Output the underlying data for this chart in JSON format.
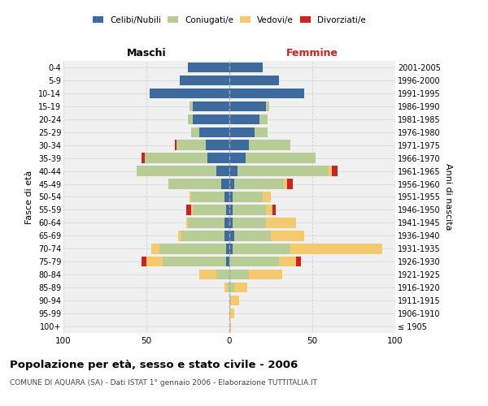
{
  "age_groups": [
    "100+",
    "95-99",
    "90-94",
    "85-89",
    "80-84",
    "75-79",
    "70-74",
    "65-69",
    "60-64",
    "55-59",
    "50-54",
    "45-49",
    "40-44",
    "35-39",
    "30-34",
    "25-29",
    "20-24",
    "15-19",
    "10-14",
    "5-9",
    "0-4"
  ],
  "birth_years": [
    "≤ 1905",
    "1906-1910",
    "1911-1915",
    "1916-1920",
    "1921-1925",
    "1926-1930",
    "1931-1935",
    "1936-1940",
    "1941-1945",
    "1946-1950",
    "1951-1955",
    "1956-1960",
    "1961-1965",
    "1966-1970",
    "1971-1975",
    "1976-1980",
    "1981-1985",
    "1986-1990",
    "1991-1995",
    "1996-2000",
    "2001-2005"
  ],
  "colors": {
    "celibi": "#3d6b9e",
    "coniugati": "#b8cc96",
    "vedovi": "#f5c96e",
    "divorziati": "#cc2222"
  },
  "maschi": {
    "celibi": [
      0,
      0,
      0,
      0,
      0,
      2,
      2,
      3,
      3,
      2,
      3,
      5,
      8,
      13,
      14,
      18,
      22,
      22,
      48,
      30,
      25
    ],
    "coniugati": [
      0,
      0,
      0,
      1,
      8,
      38,
      40,
      26,
      22,
      20,
      20,
      32,
      48,
      38,
      18,
      5,
      3,
      2,
      0,
      0,
      0
    ],
    "vedovi": [
      0,
      0,
      0,
      2,
      10,
      10,
      5,
      2,
      1,
      1,
      1,
      0,
      0,
      0,
      0,
      0,
      0,
      0,
      0,
      0,
      0
    ],
    "divorziati": [
      0,
      0,
      0,
      0,
      0,
      3,
      0,
      0,
      0,
      3,
      0,
      0,
      0,
      2,
      1,
      0,
      0,
      0,
      0,
      0,
      0
    ]
  },
  "femmine": {
    "celibi": [
      0,
      0,
      0,
      0,
      0,
      0,
      2,
      3,
      2,
      2,
      2,
      3,
      5,
      10,
      12,
      15,
      18,
      22,
      45,
      30,
      20
    ],
    "coniugati": [
      0,
      0,
      1,
      3,
      12,
      30,
      35,
      22,
      20,
      20,
      18,
      30,
      55,
      42,
      25,
      8,
      5,
      2,
      0,
      0,
      0
    ],
    "vedovi": [
      1,
      3,
      5,
      8,
      20,
      10,
      55,
      20,
      18,
      4,
      5,
      2,
      2,
      0,
      0,
      0,
      0,
      0,
      0,
      0,
      0
    ],
    "divorziati": [
      0,
      0,
      0,
      0,
      0,
      3,
      0,
      0,
      0,
      2,
      0,
      3,
      3,
      0,
      0,
      0,
      0,
      0,
      0,
      0,
      0
    ]
  },
  "title": "Popolazione per età, sesso e stato civile - 2006",
  "subtitle": "COMUNE DI AQUARA (SA) - Dati ISTAT 1° gennaio 2006 - Elaborazione TUTTITALIA.IT",
  "xlabel_left": "Maschi",
  "xlabel_right": "Femmine",
  "ylabel_left": "Fasce di età",
  "ylabel_right": "Anni di nascita",
  "legend_labels": [
    "Celibi/Nubili",
    "Coniugati/e",
    "Vedovi/e",
    "Divorziati/e"
  ],
  "xlim": 100,
  "bg_color": "#ffffff",
  "plot_bg": "#f0f0f0",
  "grid_color": "#cccccc"
}
